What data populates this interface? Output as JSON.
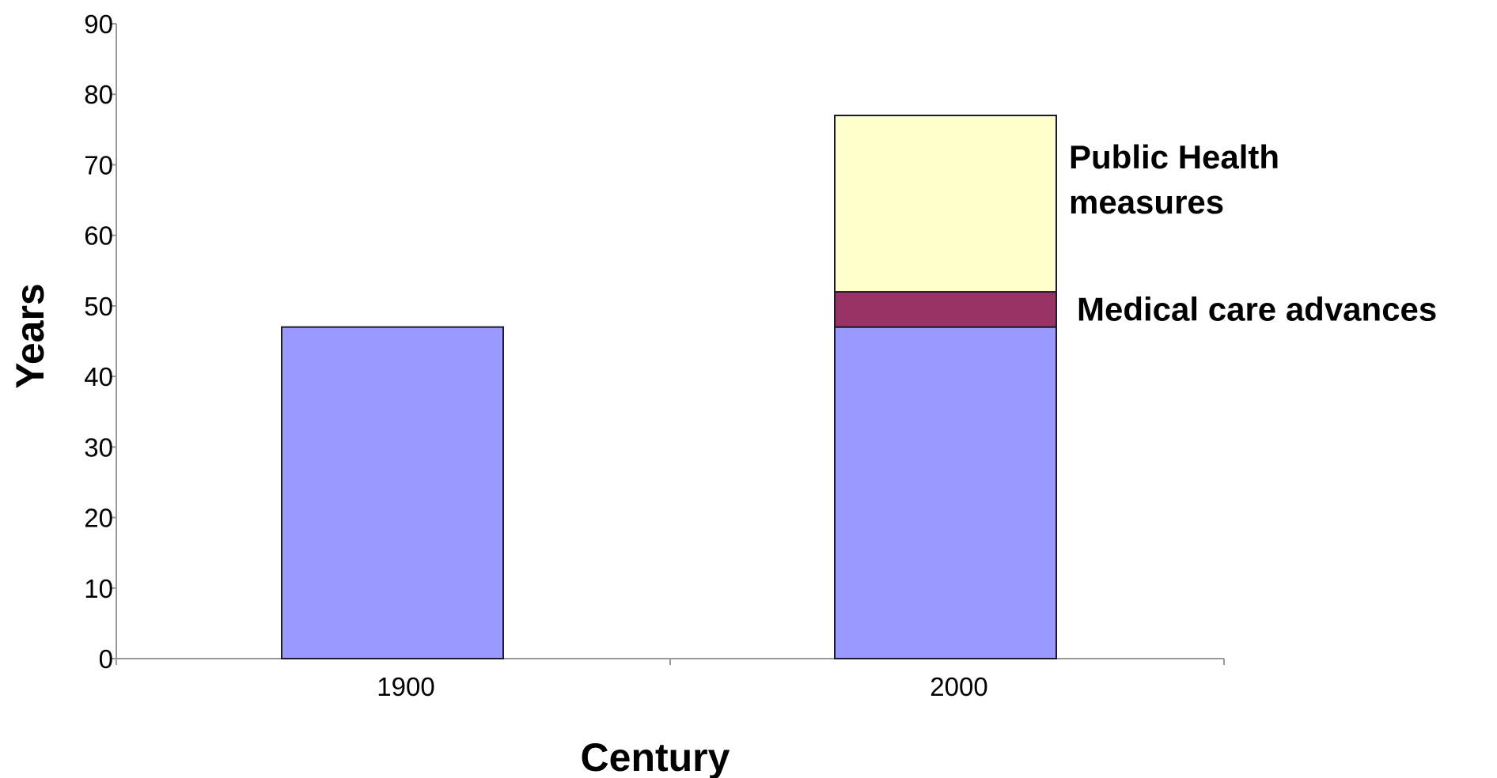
{
  "chart_data": {
    "type": "bar",
    "stacked": true,
    "title": "",
    "xlabel": "Century",
    "ylabel": "Years",
    "ylim": [
      0,
      90
    ],
    "yticks": [
      0,
      10,
      20,
      30,
      40,
      50,
      60,
      70,
      80,
      90
    ],
    "categories": [
      "1900",
      "2000"
    ],
    "grid": false,
    "legend": "inline labels beside the 2000 bar",
    "series": [
      {
        "values": [
          47,
          47
        ],
        "color": "#9999ff"
      },
      {
        "name": "Medical care advances",
        "values": [
          0,
          5
        ],
        "color": "#993366"
      },
      {
        "name": "Public Health measures",
        "values": [
          0,
          25
        ],
        "color": "#ffffcc"
      }
    ],
    "annotations": [
      {
        "series": "Public Health measures",
        "lines": [
          "Public Health",
          "measures"
        ]
      },
      {
        "series": "Medical care advances",
        "lines": [
          "Medical care advances"
        ]
      }
    ]
  }
}
